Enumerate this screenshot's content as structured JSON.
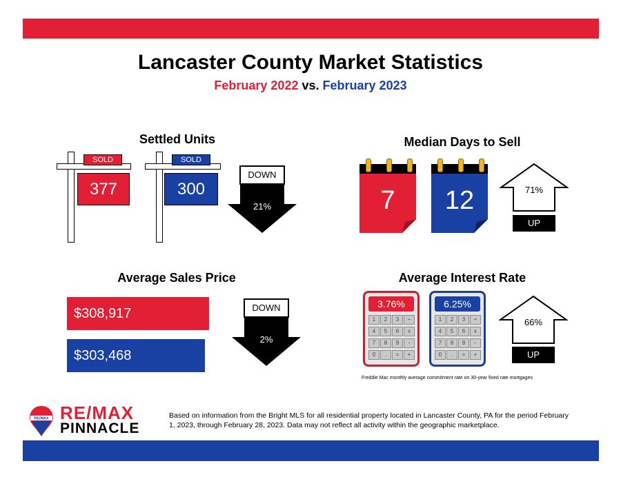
{
  "header": {
    "title": "Lancaster County Market Statistics",
    "subtitle_a": "February 2022",
    "subtitle_vs": "vs.",
    "subtitle_b": "February 2023"
  },
  "settled_units": {
    "title": "Settled Units",
    "sign_label": "SOLD",
    "value_2022": "377",
    "value_2023": "300",
    "direction": "DOWN",
    "change": "21%"
  },
  "median_days": {
    "title": "Median Days to Sell",
    "value_2022": "7",
    "value_2023": "12",
    "change": "71%",
    "direction": "UP"
  },
  "avg_price": {
    "title": "Average Sales Price",
    "value_2022": "$308,917",
    "value_2023": "$303,468",
    "direction": "DOWN",
    "change": "2%"
  },
  "interest_rate": {
    "title": "Average Interest Rate",
    "value_2022": "3.76%",
    "value_2023": "6.25%",
    "change": "66%",
    "direction": "UP",
    "note": "Freddie Mac monthly average commitment rate on 30-year fixed rate mortgages",
    "keys": [
      "1",
      "2",
      "3",
      "÷",
      "4",
      "5",
      "6",
      "x",
      "7",
      "8",
      "9",
      "-",
      "0",
      ".",
      "=",
      "+"
    ]
  },
  "logo": {
    "line1": "RE/MAX",
    "line2": "PINNACLE",
    "balloon_text": "RE/MAX"
  },
  "footer": {
    "text": "Based on information from the Bright MLS for all residential property located in Lancaster County, PA for the period February 1, 2023, through February 28, 2023.  Data may not reflect all activity within the geographic marketplace."
  },
  "colors": {
    "red": "#e21f35",
    "blue": "#1940a3"
  }
}
